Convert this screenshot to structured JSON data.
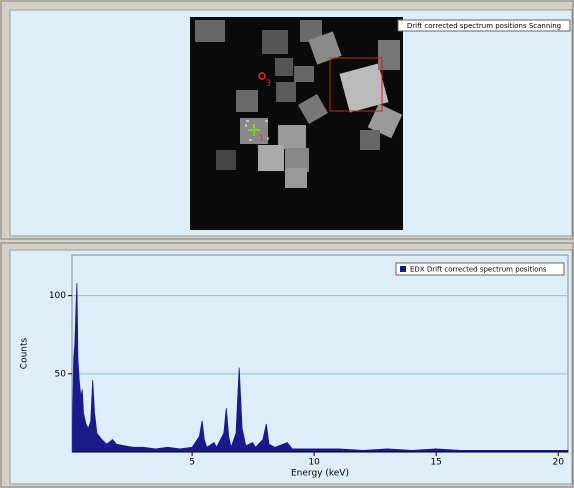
{
  "panel_label": "Drift corrected spectrum positions Scanning",
  "markers": [
    {
      "label": "3"
    },
    {
      "label": "1"
    }
  ],
  "chart_data": {
    "type": "area",
    "x_label": "Energy (keV)",
    "y_label": "Counts",
    "x": [
      0.1,
      0.15,
      0.2,
      0.25,
      0.28,
      0.32,
      0.38,
      0.45,
      0.5,
      0.55,
      0.65,
      0.75,
      0.85,
      0.93,
      1.0,
      1.1,
      1.3,
      1.5,
      1.74,
      1.9,
      2.2,
      2.6,
      3.0,
      3.5,
      4.0,
      4.5,
      5.0,
      5.3,
      5.41,
      5.5,
      5.6,
      5.9,
      6.0,
      6.3,
      6.4,
      6.5,
      6.6,
      6.8,
      6.93,
      7.05,
      7.2,
      7.48,
      7.6,
      7.9,
      8.04,
      8.15,
      8.4,
      8.9,
      9.1,
      10,
      11,
      12,
      13,
      14,
      15,
      16,
      17,
      18,
      19,
      20,
      20.4
    ],
    "series": [
      {
        "name": "EDX Drift corrected spectrum positions",
        "color": "#1a1a8c",
        "values": [
          20,
          60,
          70,
          95,
          108,
          60,
          45,
          35,
          40,
          25,
          18,
          15,
          20,
          46,
          25,
          12,
          8,
          5,
          8,
          5,
          4,
          3,
          3,
          2,
          3,
          2,
          3,
          10,
          20,
          8,
          3,
          6,
          3,
          12,
          28,
          10,
          3,
          12,
          54,
          15,
          4,
          6,
          3,
          8,
          18,
          5,
          3,
          6,
          2,
          2,
          2,
          1,
          2,
          1,
          2,
          1,
          1,
          1,
          1,
          1,
          1
        ]
      }
    ],
    "xlim": [
      0.08,
      20.4
    ],
    "ylim": [
      0,
      126
    ],
    "xticks": [
      5,
      10,
      15,
      20
    ],
    "yticks": [
      50,
      100
    ],
    "grid": true,
    "legend": "upper right"
  }
}
